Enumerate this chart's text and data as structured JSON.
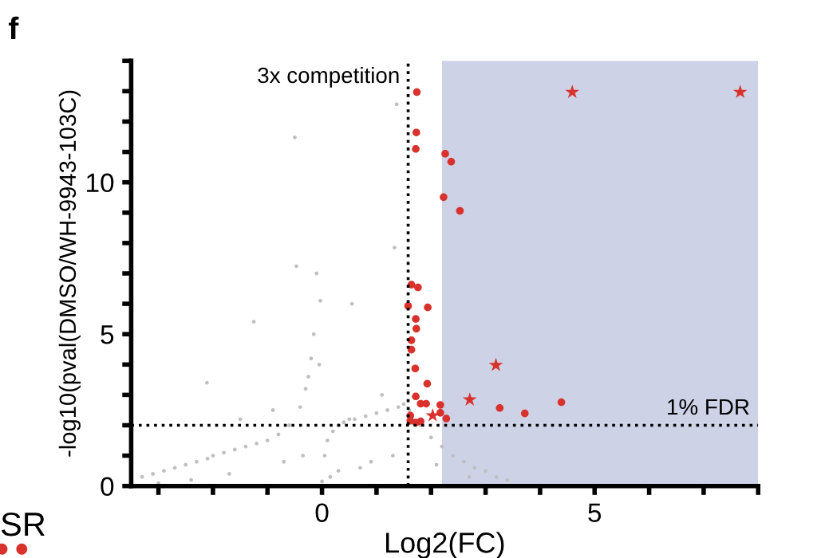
{
  "chart_data": {
    "type": "scatter",
    "xlabel": "Log2(FC)",
    "ylabel": "-log10(pval(DMSO/WH-9943-103C)",
    "xlim": [
      -3.5,
      8
    ],
    "ylim": [
      0,
      14
    ],
    "xticks": [
      {
        "value": -3,
        "label": null
      },
      {
        "value": -2,
        "label": null
      },
      {
        "value": -1,
        "label": null
      },
      0,
      {
        "value": 1,
        "label": null
      },
      {
        "value": 2,
        "label": null
      },
      {
        "value": 3,
        "label": null
      },
      {
        "value": 4,
        "label": null
      },
      5,
      {
        "value": 6,
        "label": null
      },
      {
        "value": 7,
        "label": null
      },
      {
        "value": 8,
        "label": null
      }
    ],
    "yticks": [
      0,
      {
        "value": 1,
        "label": null
      },
      {
        "value": 2,
        "label": null
      },
      {
        "value": 3,
        "label": null
      },
      {
        "value": 4,
        "label": null
      },
      5,
      {
        "value": 6,
        "label": null
      },
      {
        "value": 7,
        "label": null
      },
      {
        "value": 8,
        "label": null
      },
      {
        "value": 9,
        "label": null
      },
      10,
      {
        "value": 11,
        "label": null
      },
      {
        "value": 12,
        "label": null
      },
      {
        "value": 13,
        "label": null
      },
      {
        "value": 14,
        "label": null
      }
    ],
    "grid": false,
    "legend": false,
    "bands": [
      {
        "axis": "x",
        "from": 2.2,
        "to": 8,
        "label": null,
        "color": "#cdd2e6"
      }
    ],
    "ref_lines": [
      {
        "axis": "x",
        "value": 1.58,
        "label": "3x competition",
        "color": "#000000",
        "line_style": "dotted"
      },
      {
        "axis": "y",
        "value": 2,
        "label": "1% FDR",
        "color": "#000000",
        "line_style": "dotted"
      }
    ],
    "annotations": [
      "f",
      "SR"
    ],
    "series": [
      {
        "color": "#c0c0c0",
        "marker": "circle",
        "x": [
          -3.3,
          -3.1,
          -2.9,
          -2.7,
          -2.5,
          -2.3,
          -2.1,
          -2.0,
          -1.8,
          -1.6,
          -1.4,
          -1.25,
          -1.2,
          -1.0,
          -0.8,
          -0.6,
          -0.5,
          -0.47,
          -0.4,
          -0.3,
          -0.25,
          -0.2,
          -0.15,
          -0.1,
          -0.05,
          -0.03,
          0.0,
          0.05,
          0.1,
          0.2,
          0.3,
          0.4,
          0.5,
          0.55,
          0.6,
          0.8,
          1.0,
          1.2,
          1.33,
          1.37,
          1.4,
          1.5,
          1.6,
          1.8,
          2.0,
          2.2,
          2.4,
          2.6,
          2.8,
          3.0,
          3.2,
          3.4,
          -2.11,
          -1.5,
          -0.9,
          0.3,
          0.9,
          1.1,
          -3.0,
          -2.4,
          -1.7,
          -0.7,
          0.7,
          1.3,
          2.1,
          2.7,
          -0.35,
          0.15
        ],
        "values": [
          0.3,
          0.4,
          0.5,
          0.6,
          0.7,
          0.8,
          0.9,
          1.0,
          1.1,
          1.2,
          1.3,
          5.41,
          1.4,
          1.5,
          1.7,
          2.0,
          11.48,
          7.24,
          2.6,
          3.2,
          3.6,
          4.2,
          5.0,
          7.0,
          4.0,
          6.1,
          0.15,
          1.0,
          1.5,
          1.8,
          2.0,
          2.1,
          2.2,
          6.0,
          2.2,
          2.3,
          2.4,
          2.5,
          7.85,
          12.57,
          2.6,
          2.7,
          2.5,
          2.0,
          1.6,
          1.3,
          1.0,
          0.8,
          0.6,
          0.5,
          0.3,
          0.2,
          3.4,
          2.2,
          2.5,
          0.5,
          0.8,
          3.0,
          0.1,
          0.2,
          0.4,
          0.8,
          0.6,
          1.0,
          0.7,
          0.3,
          1.0,
          0.3
        ]
      },
      {
        "color": "#d9312b",
        "marker": "circle",
        "x": [
          1.74,
          1.73,
          1.72,
          2.26,
          2.37,
          2.23,
          2.53,
          1.64,
          1.76,
          1.58,
          1.94,
          1.72,
          1.73,
          1.64,
          1.64,
          1.71,
          1.93,
          1.72,
          1.81,
          1.91,
          2.17,
          2.17,
          2.28,
          1.62,
          1.62,
          1.72,
          1.81,
          3.26,
          3.72,
          4.39
        ],
        "values": [
          12.97,
          11.64,
          11.1,
          10.94,
          10.68,
          9.51,
          9.06,
          6.63,
          6.54,
          5.93,
          5.88,
          5.5,
          5.18,
          4.8,
          4.49,
          3.87,
          3.37,
          2.95,
          2.71,
          2.71,
          2.67,
          2.41,
          2.22,
          2.32,
          2.15,
          2.09,
          2.13,
          2.57,
          2.39,
          2.76
        ]
      },
      {
        "color": "#d9312b",
        "marker": "star",
        "x": [
          4.59,
          7.67,
          3.19,
          2.71,
          2.03
        ],
        "values": [
          12.97,
          12.97,
          3.98,
          2.84,
          2.32
        ]
      }
    ]
  }
}
